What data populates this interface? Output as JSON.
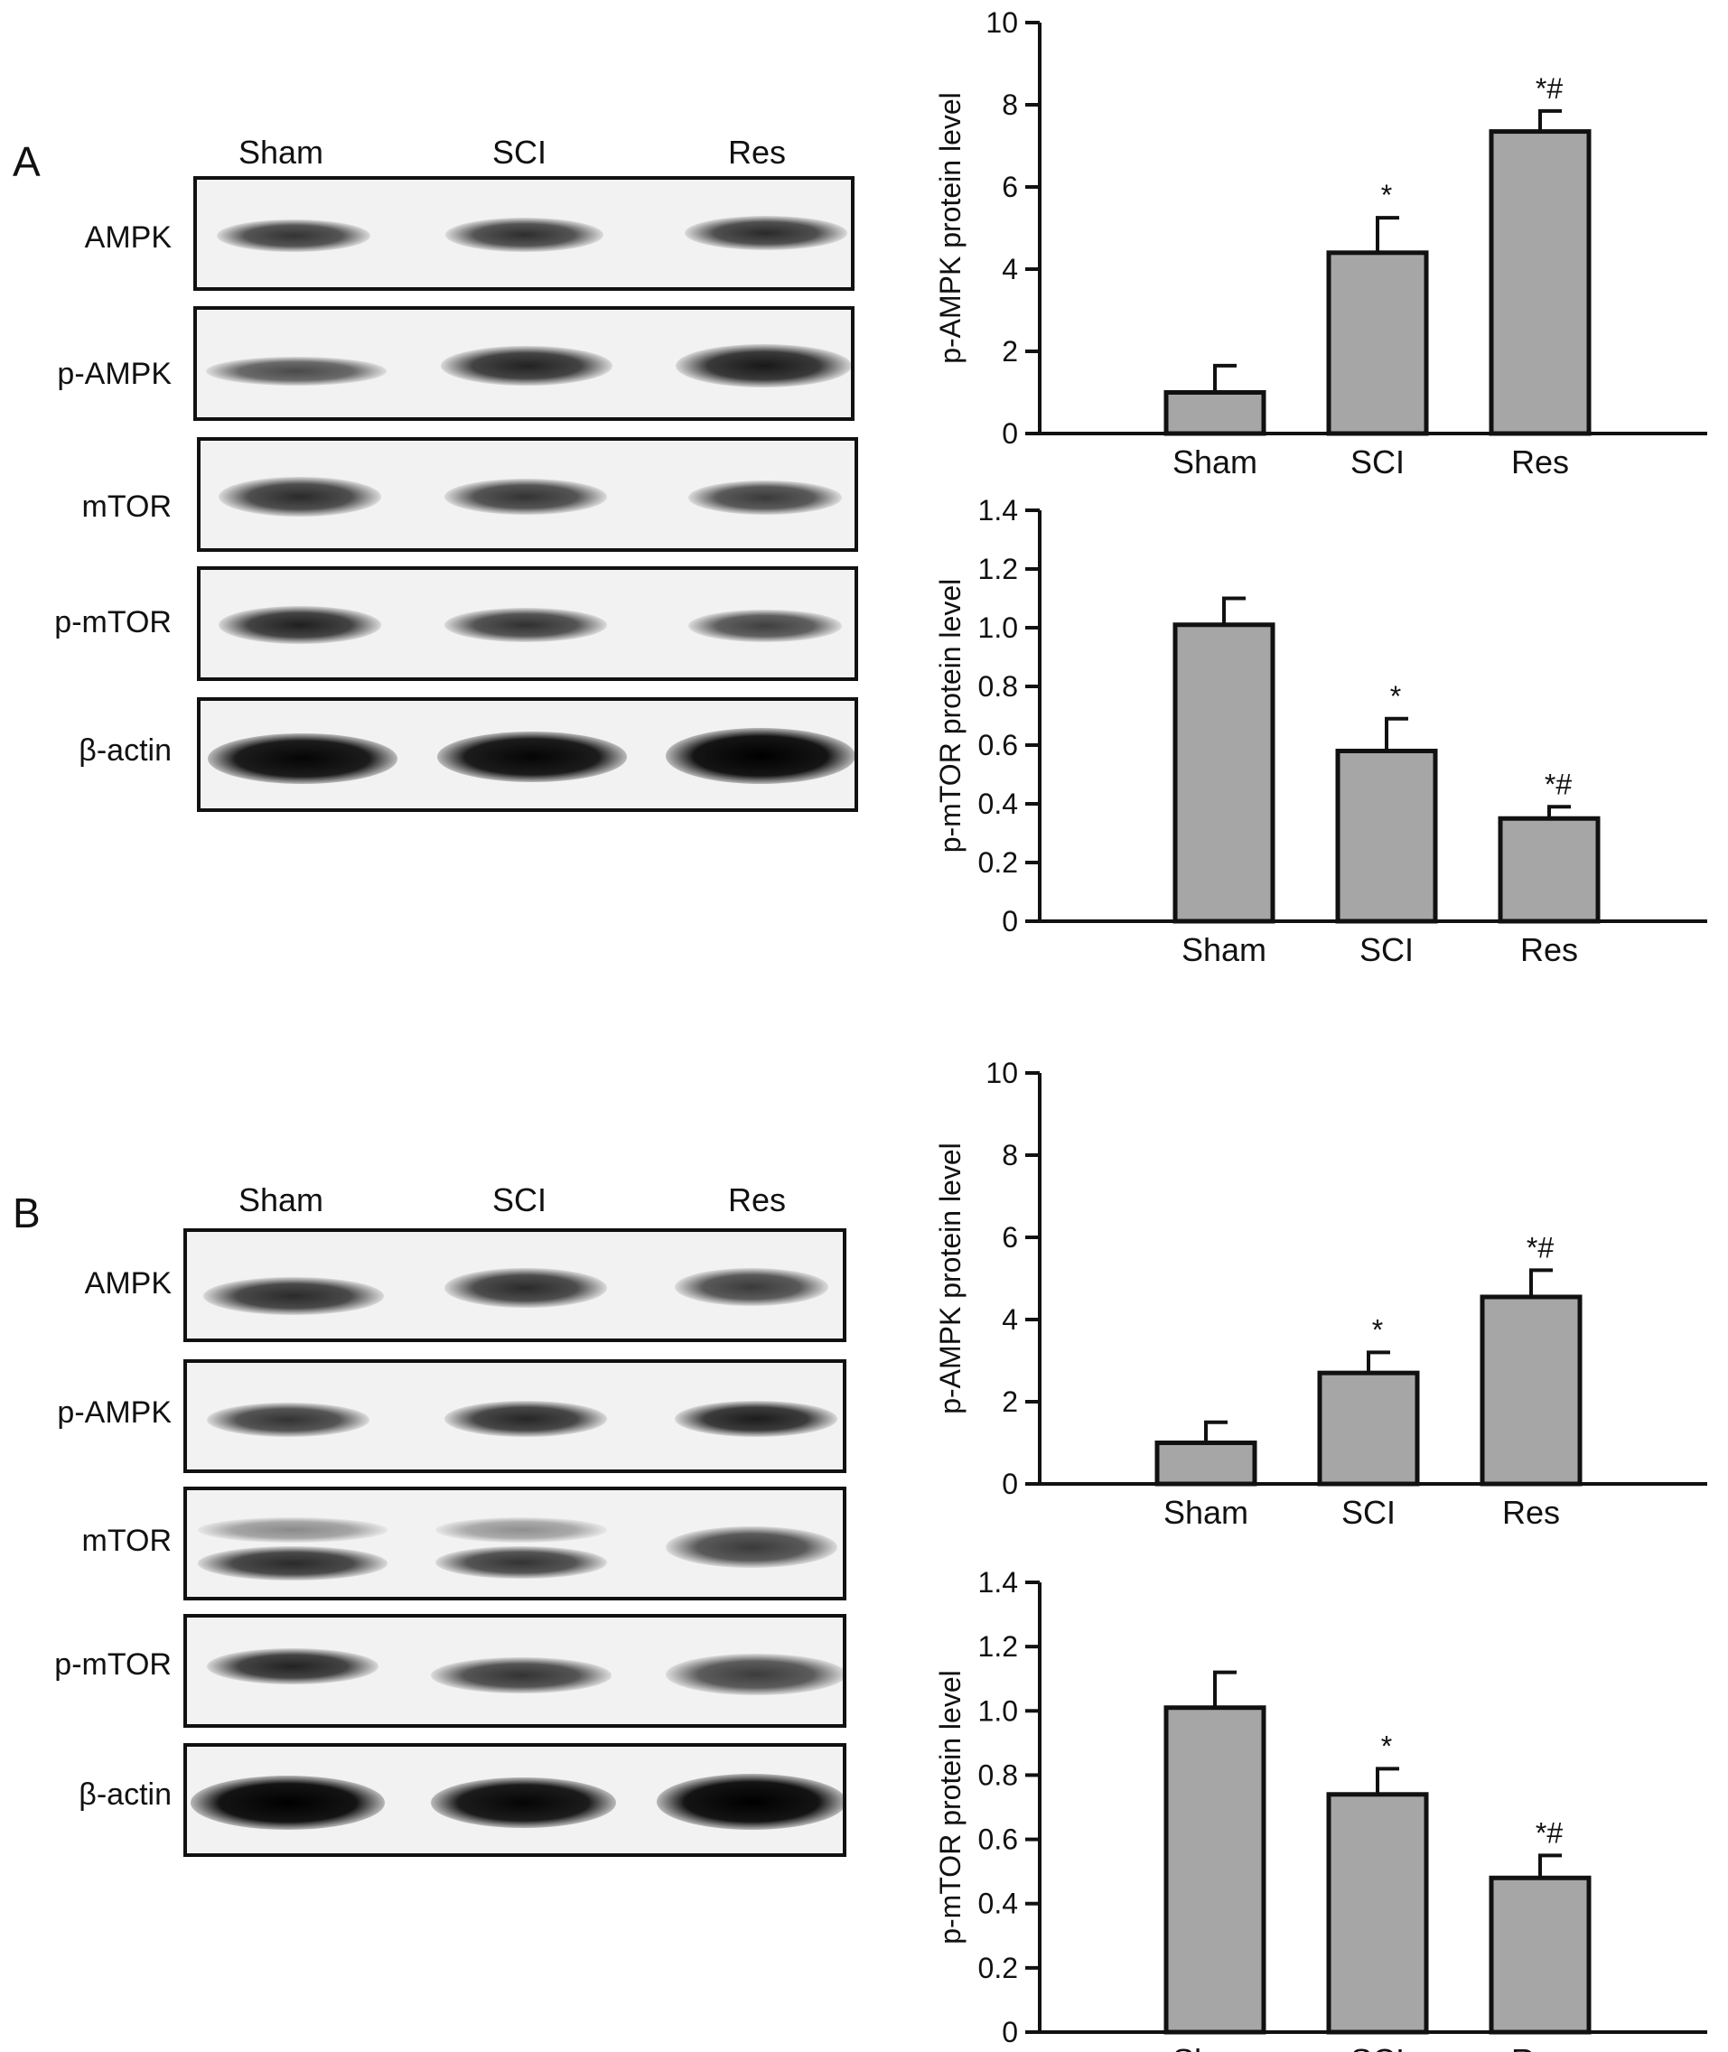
{
  "panels": [
    {
      "letter": "A",
      "blot": {
        "lanes": [
          "Sham",
          "SCI",
          "Res"
        ],
        "rows": [
          "AMPK",
          "p-AMPK",
          "mTOR",
          "p-mTOR",
          "β-actin"
        ]
      }
    },
    {
      "letter": "B",
      "blot": {
        "lanes": [
          "Sham",
          "SCI",
          "Res"
        ],
        "rows": [
          "AMPK",
          "p-AMPK",
          "mTOR",
          "p-mTOR",
          "β-actin"
        ]
      }
    }
  ],
  "chart_data": [
    {
      "type": "bar",
      "panel": "A",
      "categories": [
        "Sham",
        "SCI",
        "Res"
      ],
      "values": [
        1.0,
        4.4,
        7.35
      ],
      "errors": [
        0.65,
        0.85,
        0.5
      ],
      "annotations": [
        "",
        "*",
        "*#"
      ],
      "ylabel": "p-AMPK protein level",
      "ylim": [
        0,
        10
      ],
      "yticks": [
        "0",
        "2",
        "4",
        "6",
        "8",
        "10"
      ],
      "bar_color": "#a6a6a6"
    },
    {
      "type": "bar",
      "panel": "A",
      "categories": [
        "Sham",
        "SCI",
        "Res"
      ],
      "values": [
        1.01,
        0.58,
        0.35
      ],
      "errors": [
        0.09,
        0.11,
        0.04
      ],
      "annotations": [
        "",
        "*",
        "*#"
      ],
      "ylabel": "p-mTOR protein level",
      "ylim": [
        0,
        1.4
      ],
      "yticks": [
        "0",
        "0.2",
        "0.4",
        "0.6",
        "0.8",
        "1.0",
        "1.2",
        "1.4"
      ],
      "bar_color": "#a6a6a6"
    },
    {
      "type": "bar",
      "panel": "B",
      "categories": [
        "Sham",
        "SCI",
        "Res"
      ],
      "values": [
        1.0,
        2.7,
        4.55
      ],
      "errors": [
        0.5,
        0.5,
        0.65
      ],
      "annotations": [
        "",
        "*",
        "*#"
      ],
      "ylabel": "p-AMPK protein level",
      "ylim": [
        0,
        10
      ],
      "yticks": [
        "0",
        "2",
        "4",
        "6",
        "8",
        "10"
      ],
      "bar_color": "#a6a6a6"
    },
    {
      "type": "bar",
      "panel": "B",
      "categories": [
        "Sham",
        "SCI",
        "Res"
      ],
      "values": [
        1.01,
        0.74,
        0.48
      ],
      "errors": [
        0.11,
        0.08,
        0.07
      ],
      "annotations": [
        "",
        "*",
        "*#"
      ],
      "ylabel": "p-mTOR protein level",
      "ylim": [
        0,
        1.4
      ],
      "yticks": [
        "0",
        "0.2",
        "0.4",
        "0.6",
        "0.8",
        "1.0",
        "1.2",
        "1.4"
      ],
      "bar_color": "#a6a6a6"
    }
  ]
}
